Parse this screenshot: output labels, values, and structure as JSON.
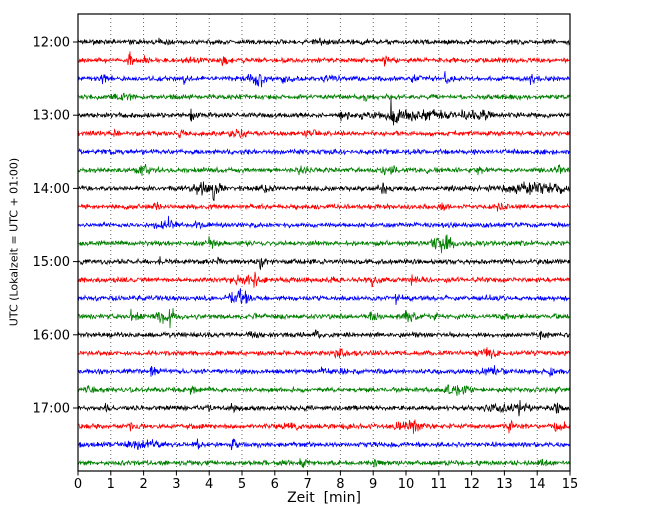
{
  "figure": {
    "xlabel": "Zeit  [min]",
    "ylabel": "UTC (Lokalzeit = UTC + 01:00)"
  },
  "chart_data": {
    "type": "line",
    "subtype": "seismogram-helicorder",
    "title": "",
    "xlabel": "Zeit  [min]",
    "ylabel": "UTC (Lokalzeit = UTC + 01:00)",
    "xlim": [
      0,
      15
    ],
    "minutes_per_line": 15,
    "x_ticks": [
      0,
      1,
      2,
      3,
      4,
      5,
      6,
      7,
      8,
      9,
      10,
      11,
      12,
      13,
      14,
      15
    ],
    "hour_labels": [
      "12:00",
      "13:00",
      "14:00",
      "15:00",
      "16:00",
      "17:00"
    ],
    "traces_per_hour": 4,
    "trace_count": 24,
    "trace_start_times": [
      "12:00",
      "12:15",
      "12:30",
      "12:45",
      "13:00",
      "13:15",
      "13:30",
      "13:45",
      "14:00",
      "14:15",
      "14:30",
      "14:45",
      "15:00",
      "15:15",
      "15:30",
      "15:45",
      "16:00",
      "16:15",
      "16:30",
      "16:45",
      "17:00",
      "17:15",
      "17:30",
      "17:45"
    ],
    "colors_cycle": [
      "#000000",
      "#ff0000",
      "#0000ff",
      "#007f00"
    ],
    "grid": {
      "vertical_dotted_per_minute": true,
      "horizontal": false
    },
    "axis_color": "#000000",
    "background_color": "#ffffff",
    "events": [
      {
        "row": 1,
        "minute": 1.6,
        "width": 0.08,
        "amp": 3.0
      },
      {
        "row": 2,
        "minute": 5.5,
        "width": 0.25,
        "amp": 3.5
      },
      {
        "row": 3,
        "minute": 1.3,
        "width": 0.3,
        "amp": 1.2
      },
      {
        "row": 4,
        "minute": 10.3,
        "width": 1.0,
        "amp": 1.8
      },
      {
        "row": 4,
        "minute": 12.3,
        "width": 0.4,
        "amp": 1.2
      },
      {
        "row": 5,
        "minute": 4.9,
        "width": 0.2,
        "amp": 1.5
      },
      {
        "row": 5,
        "minute": 7.1,
        "width": 0.15,
        "amp": 1.3
      },
      {
        "row": 7,
        "minute": 2.0,
        "width": 0.3,
        "amp": 1.5
      },
      {
        "row": 7,
        "minute": 9.5,
        "width": 0.3,
        "amp": 1.2
      },
      {
        "row": 8,
        "minute": 3.8,
        "width": 0.4,
        "amp": 2.0
      },
      {
        "row": 8,
        "minute": 9.3,
        "width": 0.2,
        "amp": 1.3
      },
      {
        "row": 8,
        "minute": 14.0,
        "width": 0.9,
        "amp": 2.2
      },
      {
        "row": 9,
        "minute": 2.4,
        "width": 0.1,
        "amp": 2.0
      },
      {
        "row": 10,
        "minute": 2.5,
        "width": 0.2,
        "amp": 1.5
      },
      {
        "row": 11,
        "minute": 11.2,
        "width": 0.25,
        "amp": 3.5
      },
      {
        "row": 13,
        "minute": 5.0,
        "width": 0.3,
        "amp": 1.5
      },
      {
        "row": 14,
        "minute": 4.9,
        "width": 0.3,
        "amp": 3.5
      },
      {
        "row": 15,
        "minute": 2.6,
        "width": 0.25,
        "amp": 2.5
      },
      {
        "row": 15,
        "minute": 10.1,
        "width": 0.3,
        "amp": 1.5
      },
      {
        "row": 17,
        "minute": 12.5,
        "width": 0.3,
        "amp": 1.5
      },
      {
        "row": 18,
        "minute": 12.6,
        "width": 0.3,
        "amp": 1.8
      },
      {
        "row": 19,
        "minute": 11.5,
        "width": 0.4,
        "amp": 1.5
      },
      {
        "row": 20,
        "minute": 13.0,
        "width": 0.5,
        "amp": 1.5
      },
      {
        "row": 21,
        "minute": 6.5,
        "width": 0.2,
        "amp": 1.5
      },
      {
        "row": 21,
        "minute": 10.0,
        "width": 0.4,
        "amp": 1.3
      },
      {
        "row": 22,
        "minute": 2.0,
        "width": 0.5,
        "amp": 1.3
      }
    ]
  }
}
